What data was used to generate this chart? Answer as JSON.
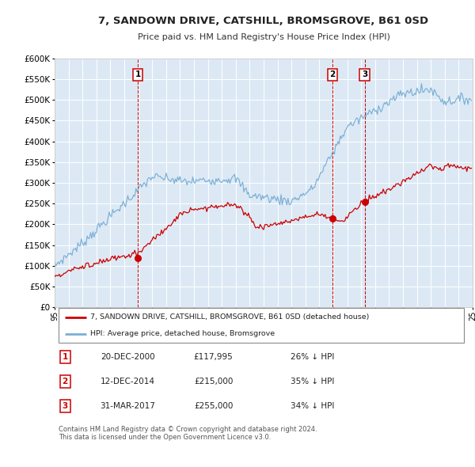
{
  "title": "7, SANDOWN DRIVE, CATSHILL, BROMSGROVE, B61 0SD",
  "subtitle": "Price paid vs. HM Land Registry's House Price Index (HPI)",
  "ylim": [
    0,
    600000
  ],
  "yticks": [
    0,
    50000,
    100000,
    150000,
    200000,
    250000,
    300000,
    350000,
    400000,
    450000,
    500000,
    550000,
    600000
  ],
  "xlim_start": 1995,
  "xlim_end": 2025,
  "plot_bg_color": "#dce9f5",
  "grid_color": "#ffffff",
  "red_line_color": "#cc0000",
  "blue_line_color": "#7bafd4",
  "marker_color": "#cc0000",
  "sale_points": [
    {
      "year": 2000.97,
      "value": 117995,
      "label": "1"
    },
    {
      "year": 2014.95,
      "value": 215000,
      "label": "2"
    },
    {
      "year": 2017.25,
      "value": 255000,
      "label": "3"
    }
  ],
  "vline_dates": [
    2000.97,
    2014.95,
    2017.25
  ],
  "legend_red_label": "7, SANDOWN DRIVE, CATSHILL, BROMSGROVE, B61 0SD (detached house)",
  "legend_blue_label": "HPI: Average price, detached house, Bromsgrove",
  "table_data": [
    {
      "num": "1",
      "date": "20-DEC-2000",
      "price": "£117,995",
      "pct": "26% ↓ HPI"
    },
    {
      "num": "2",
      "date": "12-DEC-2014",
      "price": "£215,000",
      "pct": "35% ↓ HPI"
    },
    {
      "num": "3",
      "date": "31-MAR-2017",
      "price": "£255,000",
      "pct": "34% ↓ HPI"
    }
  ],
  "footer": "Contains HM Land Registry data © Crown copyright and database right 2024.\nThis data is licensed under the Open Government Licence v3.0."
}
